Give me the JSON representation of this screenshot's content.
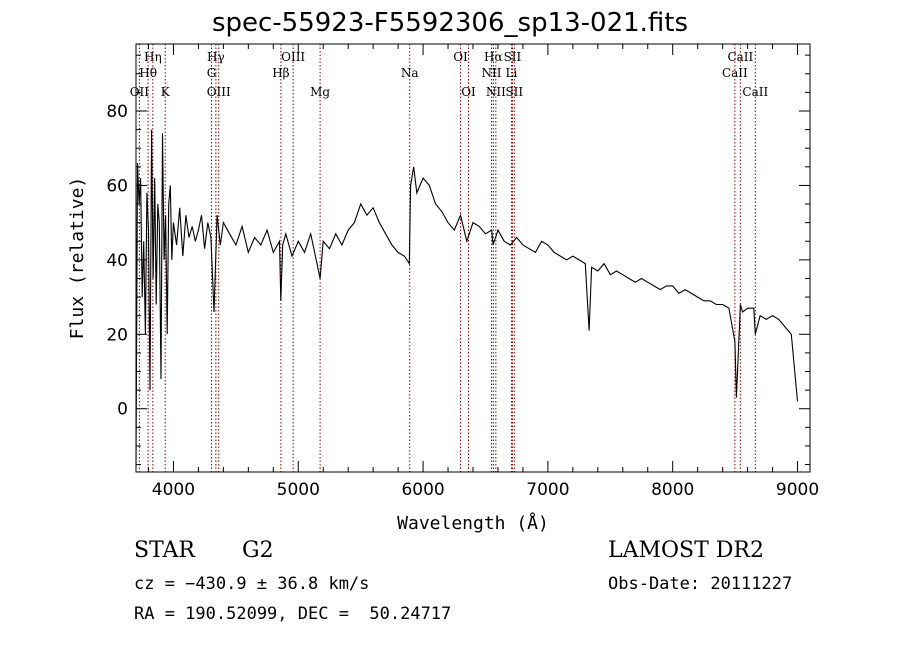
{
  "title": "spec-55923-F5592306_sp13-021.fits",
  "footer": {
    "class_label": "STAR",
    "subclass": "G2",
    "cz": "cz = −430.9 ± 36.8 km/s",
    "radec": "RA = 190.52099, DEC =  50.24717",
    "survey": "LAMOST DR2",
    "obs_date": "Obs-Date: 20111227"
  },
  "chart_data": {
    "type": "line",
    "title": "spec-55923-F5592306_sp13-021.fits",
    "xlabel": "Wavelength (Å)",
    "ylabel": "Flux (relative)",
    "xlim": [
      3700,
      9100
    ],
    "ylim": [
      -17,
      98
    ],
    "xticks": [
      4000,
      5000,
      6000,
      7000,
      8000,
      9000
    ],
    "yticks": [
      0,
      20,
      40,
      60,
      80
    ],
    "line_color": "#000000",
    "marker_color": "#8b0000",
    "grid": false,
    "spectrum": {
      "x": [
        3700,
        3712,
        3725,
        3737,
        3750,
        3762,
        3775,
        3787,
        3800,
        3812,
        3825,
        3837,
        3850,
        3862,
        3875,
        3887,
        3900,
        3912,
        3925,
        3937,
        3950,
        3962,
        3975,
        3987,
        4000,
        4025,
        4050,
        4075,
        4100,
        4125,
        4150,
        4175,
        4200,
        4225,
        4250,
        4275,
        4300,
        4325,
        4350,
        4375,
        4400,
        4450,
        4500,
        4550,
        4600,
        4650,
        4700,
        4750,
        4800,
        4850,
        4860,
        4875,
        4900,
        4950,
        5000,
        5050,
        5100,
        5150,
        5175,
        5200,
        5250,
        5300,
        5350,
        5400,
        5450,
        5500,
        5550,
        5600,
        5650,
        5700,
        5750,
        5800,
        5850,
        5890,
        5900,
        5925,
        5950,
        6000,
        6050,
        6100,
        6150,
        6200,
        6250,
        6300,
        6350,
        6400,
        6450,
        6500,
        6550,
        6560,
        6600,
        6650,
        6700,
        6750,
        6800,
        6850,
        6900,
        6950,
        7000,
        7050,
        7100,
        7150,
        7200,
        7250,
        7300,
        7330,
        7350,
        7400,
        7450,
        7500,
        7550,
        7600,
        7650,
        7700,
        7750,
        7800,
        7850,
        7900,
        7950,
        8000,
        8050,
        8100,
        8150,
        8200,
        8250,
        8300,
        8350,
        8400,
        8450,
        8498,
        8510,
        8542,
        8560,
        8600,
        8650,
        8662,
        8700,
        8750,
        8800,
        8850,
        8900,
        8950,
        9000
      ],
      "y": [
        -15,
        66,
        55,
        62,
        30,
        45,
        20,
        58,
        48,
        5,
        75,
        35,
        62,
        28,
        55,
        50,
        8,
        74,
        40,
        52,
        20,
        55,
        60,
        40,
        50,
        44,
        54,
        41,
        52,
        46,
        49,
        45,
        48,
        52,
        43,
        50,
        46,
        26,
        52,
        44,
        50,
        47,
        44,
        49,
        42,
        46,
        44,
        48,
        42,
        45,
        29,
        44,
        47,
        41,
        45,
        42,
        47,
        39,
        35,
        45,
        43,
        47,
        44,
        48,
        50,
        55,
        52,
        54,
        50,
        47,
        44,
        42,
        41,
        39,
        60,
        65,
        58,
        62,
        60,
        55,
        53,
        50,
        48,
        52,
        45,
        50,
        49,
        47,
        48,
        44,
        48,
        45,
        44,
        46,
        44,
        43,
        42,
        45,
        44,
        42,
        41,
        40,
        41,
        40,
        39,
        21,
        38,
        37,
        39,
        36,
        37,
        36,
        35,
        34,
        35,
        34,
        33,
        32,
        33,
        33,
        31,
        32,
        31,
        30,
        29,
        29,
        28,
        28,
        27,
        18,
        3,
        28,
        26,
        27,
        27,
        20,
        25,
        24,
        25,
        24,
        22,
        20,
        2
      ]
    },
    "lines": [
      {
        "label": "Hη",
        "x": 3835,
        "row": 1
      },
      {
        "label": "Hθ",
        "x": 3797,
        "row": 2
      },
      {
        "label": "OII",
        "x": 3727,
        "row": 3
      },
      {
        "label": "K",
        "x": 3934,
        "row": 3
      },
      {
        "label": "Hγ",
        "x": 4340,
        "row": 1
      },
      {
        "label": "G",
        "x": 4305,
        "row": 2
      },
      {
        "label": "OIII",
        "x": 4363,
        "row": 3
      },
      {
        "label": "OIII",
        "x": 4959,
        "row": 1
      },
      {
        "label": "Hβ",
        "x": 4861,
        "row": 2
      },
      {
        "label": "Mg",
        "x": 5175,
        "row": 3
      },
      {
        "label": "Na",
        "x": 5893,
        "row": 2
      },
      {
        "label": "OI",
        "x": 6300,
        "row": 1
      },
      {
        "label": "OI",
        "x": 6364,
        "row": 3
      },
      {
        "label": "Hα",
        "x": 6563,
        "row": 1
      },
      {
        "label": "SII",
        "x": 6716,
        "row": 1
      },
      {
        "label": "NII",
        "x": 6548,
        "row": 2
      },
      {
        "label": "Li",
        "x": 6708,
        "row": 2
      },
      {
        "label": "NII",
        "x": 6583,
        "row": 3
      },
      {
        "label": "SII",
        "x": 6731,
        "row": 3
      },
      {
        "label": "CaII",
        "x": 8542,
        "row": 1
      },
      {
        "label": "CaII",
        "x": 8498,
        "row": 2
      },
      {
        "label": "CaII",
        "x": 8662,
        "row": 3
      }
    ]
  }
}
